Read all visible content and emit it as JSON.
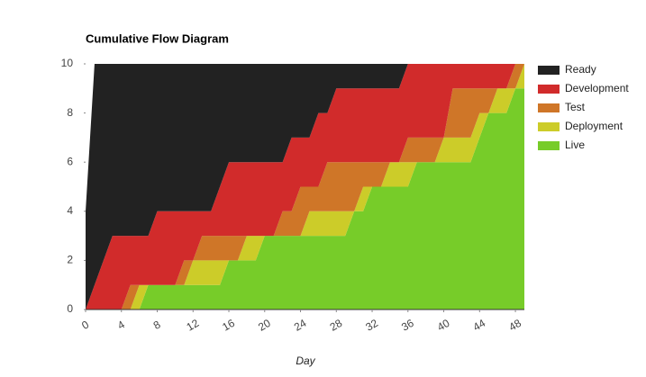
{
  "chart_data": {
    "type": "stacked_area",
    "title": "Cumulative Flow Diagram",
    "x_label": "Day",
    "x": [
      0,
      1,
      2,
      3,
      4,
      5,
      6,
      7,
      8,
      9,
      10,
      11,
      12,
      13,
      14,
      15,
      16,
      17,
      18,
      19,
      20,
      21,
      22,
      23,
      24,
      25,
      26,
      27,
      28,
      29,
      30,
      31,
      32,
      33,
      34,
      35,
      36,
      37,
      38,
      39,
      40,
      41,
      42,
      43,
      44,
      45,
      46,
      47,
      48,
      49
    ],
    "series": [
      {
        "name": "Ready",
        "color": "#222222",
        "values": [
          4,
          9,
          8,
          7,
          7,
          7,
          7,
          7,
          6,
          6,
          6,
          6,
          6,
          6,
          6,
          5,
          4,
          4,
          4,
          4,
          4,
          4,
          4,
          3,
          3,
          3,
          2,
          2,
          1,
          1,
          1,
          1,
          1,
          1,
          1,
          1,
          0,
          0,
          0,
          0,
          0,
          0,
          0,
          0,
          0,
          0,
          0,
          0,
          0,
          0
        ]
      },
      {
        "name": "Development",
        "color": "#d12b2b",
        "values": [
          0,
          1,
          2,
          3,
          3,
          2,
          2,
          2,
          3,
          3,
          3,
          2,
          2,
          1,
          1,
          2,
          3,
          3,
          3,
          3,
          3,
          3,
          2,
          3,
          2,
          2,
          3,
          2,
          3,
          3,
          3,
          3,
          3,
          3,
          3,
          3,
          3,
          3,
          3,
          3,
          3,
          1,
          1,
          1,
          1,
          1,
          1,
          1,
          0,
          0
        ]
      },
      {
        "name": "Test",
        "color": "#cf7628",
        "values": [
          0,
          0,
          0,
          0,
          0,
          1,
          0,
          0,
          0,
          0,
          0,
          1,
          0,
          1,
          1,
          1,
          1,
          1,
          0,
          0,
          0,
          0,
          1,
          1,
          2,
          1,
          1,
          2,
          2,
          2,
          2,
          1,
          1,
          1,
          0,
          0,
          1,
          1,
          1,
          1,
          0,
          2,
          2,
          2,
          1,
          1,
          0,
          0,
          1,
          0
        ]
      },
      {
        "name": "Deployment",
        "color": "#cccc29",
        "values": [
          0,
          0,
          0,
          0,
          0,
          0,
          1,
          0,
          0,
          0,
          0,
          0,
          1,
          1,
          1,
          1,
          0,
          0,
          1,
          1,
          0,
          0,
          0,
          0,
          0,
          1,
          1,
          1,
          1,
          1,
          0,
          1,
          0,
          0,
          1,
          1,
          1,
          0,
          0,
          0,
          1,
          1,
          1,
          1,
          1,
          0,
          1,
          1,
          0,
          1
        ]
      },
      {
        "name": "Live",
        "color": "#77cc29",
        "values": [
          0,
          0,
          0,
          0,
          0,
          0,
          0,
          1,
          1,
          1,
          1,
          1,
          1,
          1,
          1,
          1,
          2,
          2,
          2,
          2,
          3,
          3,
          3,
          3,
          3,
          3,
          3,
          3,
          3,
          3,
          4,
          4,
          5,
          5,
          5,
          5,
          5,
          6,
          6,
          6,
          6,
          6,
          6,
          6,
          7,
          8,
          8,
          8,
          9,
          9
        ]
      }
    ],
    "xlim": [
      0,
      49
    ],
    "xticks": [
      0,
      4,
      8,
      12,
      16,
      20,
      24,
      28,
      32,
      36,
      40,
      44,
      48
    ],
    "ylim": [
      0,
      10
    ],
    "yticks": [
      0,
      2,
      4,
      6,
      8,
      10
    ],
    "legend": "right"
  }
}
